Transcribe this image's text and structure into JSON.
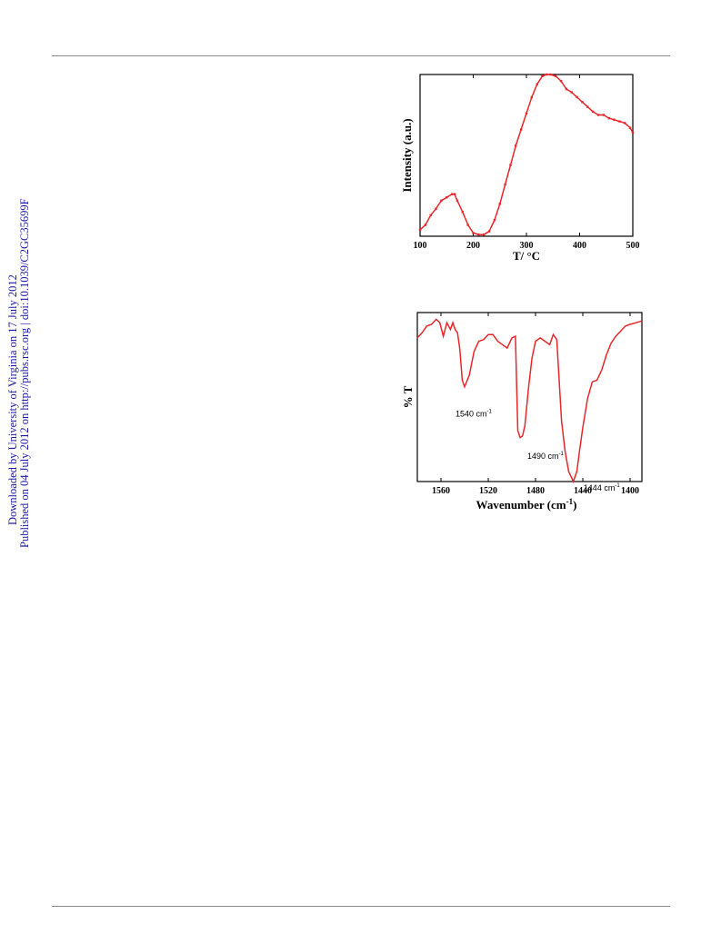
{
  "sidebar": {
    "downloaded": "Downloaded by University of Virginia on 17 July 2012",
    "published": "Published on 04 July 2012 on http://pubs.rsc.org | doi:10.1039/C2GC35699F"
  },
  "chart_data": [
    {
      "type": "line",
      "title": "",
      "xlabel": "T/ °C",
      "ylabel": "Intensity (a.u.)",
      "xlim": [
        100,
        500
      ],
      "ylim": [
        0,
        100
      ],
      "y_ticks_shown": false,
      "x_ticks": [
        100,
        200,
        300,
        400,
        500
      ],
      "x_tick_labels": [
        "100",
        "200",
        "300",
        "400",
        "500"
      ],
      "color": "#e8272b",
      "grid": false,
      "series": [
        {
          "x": [
            100,
            110,
            120,
            130,
            140,
            150,
            160,
            165,
            170,
            180,
            190,
            200,
            210,
            220,
            230,
            240,
            250,
            260,
            270,
            280,
            290,
            300,
            310,
            320,
            330,
            338,
            345,
            355,
            365,
            375,
            385,
            395,
            405,
            415,
            425,
            435,
            445,
            455,
            465,
            475,
            485,
            495,
            500
          ],
          "y": [
            4,
            7,
            13,
            17,
            22,
            24,
            26,
            26,
            22,
            15,
            7,
            2,
            1,
            1,
            3,
            10,
            20,
            32,
            44,
            56,
            66,
            76,
            86,
            94,
            99,
            100,
            100,
            99,
            96,
            91,
            89,
            86,
            83,
            80,
            77,
            75,
            75,
            73,
            72,
            71,
            70,
            67,
            64
          ]
        }
      ]
    },
    {
      "type": "line",
      "title": "",
      "xlabel": "Wavenumber (cm-1)",
      "ylabel": "% T",
      "xlim": [
        1580,
        1390
      ],
      "ylim": [
        0,
        100
      ],
      "y_ticks_shown": false,
      "x_ticks": [
        1560,
        1520,
        1480,
        1440,
        1400
      ],
      "x_tick_labels": [
        "1560",
        "1520",
        "1480",
        "1440",
        "1400"
      ],
      "color": "#e8272b",
      "grid": false,
      "annotations": [
        {
          "x": 1540,
          "y": 48,
          "text": "1540 cm",
          "sup": "-1"
        },
        {
          "x": 1490,
          "y": 22,
          "text": "1490 cm",
          "sup": "-1"
        },
        {
          "x": 1444,
          "y": 0,
          "text": "1444 cm",
          "sup": "-1"
        }
      ],
      "series": [
        {
          "x": [
            1580,
            1576,
            1572,
            1568,
            1564,
            1561,
            1558,
            1555,
            1552,
            1550,
            1548,
            1546,
            1544,
            1542,
            1540,
            1536,
            1532,
            1528,
            1524,
            1520,
            1516,
            1512,
            1508,
            1504,
            1500,
            1497,
            1495,
            1493,
            1491,
            1489,
            1486,
            1483,
            1480,
            1476,
            1472,
            1468,
            1465,
            1462,
            1460,
            1458,
            1455,
            1452,
            1448,
            1445,
            1443,
            1440,
            1436,
            1432,
            1428,
            1424,
            1420,
            1416,
            1412,
            1408,
            1404,
            1400,
            1395,
            1390
          ],
          "y": [
            85,
            88,
            92,
            93,
            96,
            94,
            86,
            94,
            90,
            94,
            90,
            88,
            78,
            60,
            56,
            63,
            77,
            83,
            84,
            87,
            87,
            83,
            81,
            79,
            85,
            86,
            30,
            26,
            27,
            33,
            55,
            73,
            83,
            85,
            83,
            81,
            87,
            84,
            60,
            36,
            18,
            6,
            0,
            6,
            17,
            32,
            49,
            59,
            60,
            66,
            75,
            82,
            86,
            89,
            92,
            93,
            94,
            95
          ]
        }
      ]
    }
  ]
}
